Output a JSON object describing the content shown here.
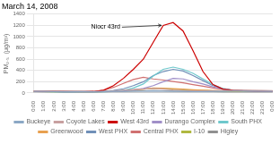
{
  "chart_data": {
    "type": "line",
    "title": "March 14, 2008",
    "ylabel": "PM₂.₅  (μg/m³)",
    "categories": [
      "0:00",
      "1:00",
      "2:00",
      "3:00",
      "4:00",
      "5:00",
      "6:00",
      "7:00",
      "8:00",
      "9:00",
      "10:00",
      "11:00",
      "12:00",
      "13:00",
      "14:00",
      "15:00",
      "16:00",
      "17:00",
      "18:00",
      "19:00",
      "20:00",
      "21:00",
      "22:00",
      "23:00",
      "0:00"
    ],
    "series": [
      {
        "name": "Buckeye",
        "color": "#8ca8c5",
        "values": [
          30,
          28,
          26,
          25,
          24,
          24,
          23,
          25,
          28,
          30,
          32,
          34,
          36,
          34,
          30,
          28,
          26,
          26,
          28,
          30,
          32,
          33,
          32,
          31,
          30
        ]
      },
      {
        "name": "Coyote Lakes",
        "color": "#c8a0a0",
        "values": [
          35,
          33,
          31,
          30,
          29,
          28,
          27,
          30,
          38,
          50,
          60,
          70,
          80,
          70,
          55,
          45,
          38,
          36,
          38,
          42,
          46,
          48,
          46,
          44,
          42
        ]
      },
      {
        "name": "West 43rd",
        "color": "#cc0000",
        "values": [
          35,
          32,
          30,
          28,
          27,
          26,
          28,
          50,
          130,
          260,
          420,
          600,
          900,
          1200,
          1250,
          1100,
          750,
          380,
          150,
          70,
          50,
          42,
          38,
          35,
          32
        ]
      },
      {
        "name": "Durango Complex",
        "color": "#a08fc8",
        "values": [
          28,
          26,
          24,
          23,
          22,
          21,
          21,
          24,
          30,
          38,
          55,
          80,
          130,
          200,
          260,
          250,
          200,
          160,
          110,
          70,
          48,
          40,
          35,
          32,
          30
        ]
      },
      {
        "name": "South PHX",
        "color": "#6ec8cc",
        "values": [
          26,
          24,
          22,
          21,
          20,
          20,
          20,
          23,
          28,
          45,
          90,
          160,
          300,
          420,
          460,
          420,
          350,
          250,
          150,
          80,
          50,
          38,
          32,
          28,
          26
        ]
      },
      {
        "name": "Greenwood",
        "color": "#e8a050",
        "values": [
          30,
          28,
          26,
          25,
          24,
          23,
          23,
          26,
          32,
          40,
          55,
          70,
          90,
          85,
          78,
          68,
          58,
          50,
          44,
          40,
          38,
          36,
          35,
          34,
          33
        ]
      },
      {
        "name": "West PHX",
        "color": "#7090b8",
        "values": [
          28,
          26,
          24,
          23,
          22,
          21,
          22,
          28,
          45,
          75,
          130,
          200,
          310,
          380,
          420,
          390,
          310,
          220,
          130,
          75,
          50,
          40,
          35,
          30,
          28
        ]
      },
      {
        "name": "Central PHX",
        "color": "#d07070",
        "values": [
          32,
          30,
          28,
          27,
          26,
          25,
          28,
          48,
          100,
          170,
          240,
          280,
          250,
          230,
          205,
          180,
          150,
          120,
          90,
          65,
          50,
          44,
          40,
          37,
          35
        ]
      },
      {
        "name": "I-10",
        "color": "#b0b840",
        "values": [
          26,
          24,
          22,
          21,
          20,
          20,
          20,
          24,
          32,
          42,
          55,
          70,
          80,
          75,
          68,
          58,
          50,
          44,
          38,
          34,
          30,
          28,
          27,
          26,
          25
        ]
      },
      {
        "name": "Higley",
        "color": "#909090",
        "values": [
          24,
          22,
          20,
          19,
          19,
          18,
          18,
          20,
          24,
          28,
          32,
          36,
          40,
          38,
          34,
          30,
          27,
          25,
          24,
          23,
          22,
          22,
          21,
          21,
          21
        ]
      }
    ],
    "ylim": [
      0,
      1400
    ],
    "yticks": [
      0,
      200,
      400,
      600,
      800,
      1000,
      1200,
      1400
    ],
    "grid": true,
    "legend": "bottom",
    "annotations": [
      {
        "text": "Niocr 43rd",
        "x": "13:00",
        "y": 1200
      }
    ]
  }
}
